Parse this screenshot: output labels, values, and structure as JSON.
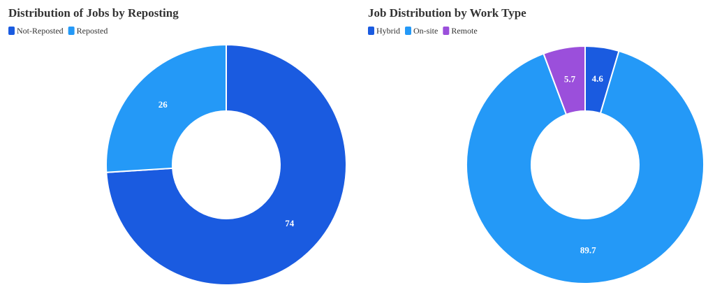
{
  "chart_data": [
    {
      "type": "donut",
      "title": "Distribution of Jobs by Reposting",
      "categories": [
        "Not-Reposted",
        "Reposted"
      ],
      "values": [
        74,
        26
      ],
      "colors": [
        "#1a5be0",
        "#2499f7"
      ]
    },
    {
      "type": "donut",
      "title": "Job Distribution by Work Type",
      "categories": [
        "Hybrid",
        "On-site",
        "Remote"
      ],
      "values": [
        4.6,
        89.7,
        5.7
      ],
      "colors": [
        "#1a5be0",
        "#2499f7",
        "#9b4fdb"
      ]
    }
  ]
}
